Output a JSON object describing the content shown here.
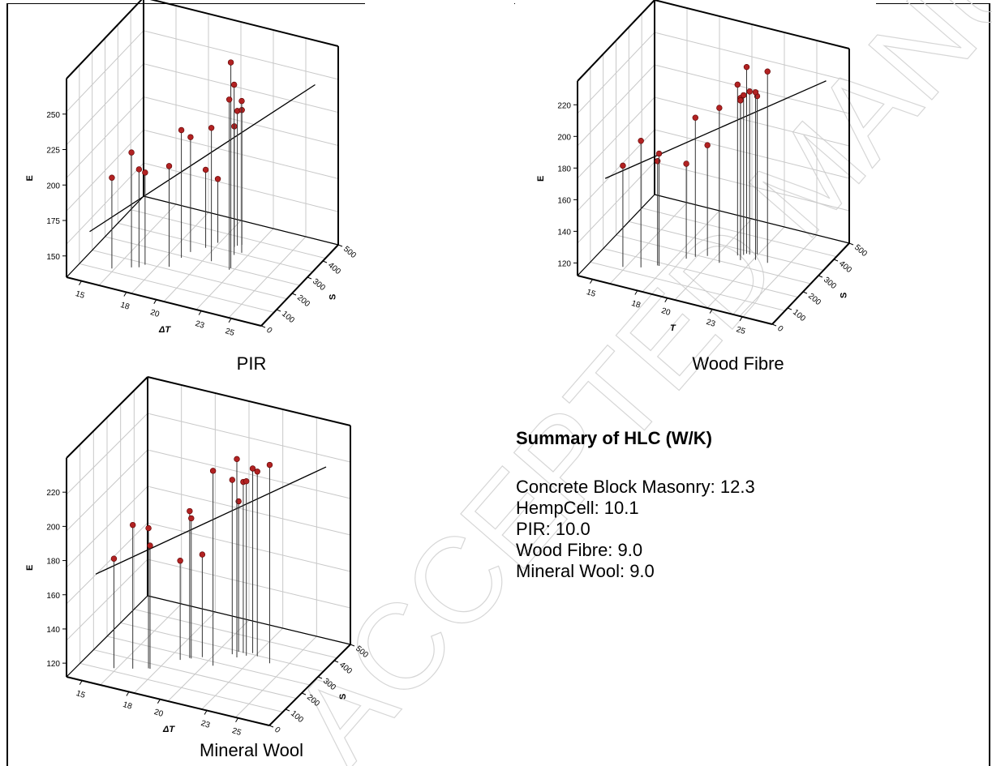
{
  "summary": {
    "title": "Summary of HLC (W/K)",
    "lines": [
      "Concrete Block Masonry: 12.3",
      "HempCell: 10.1",
      "PIR: 10.0",
      "Wood Fibre: 9.0",
      "Mineral Wool: 9.0"
    ]
  },
  "chart_data": [
    {
      "type": "scatter",
      "subtype": "3d-scatter-with-drop-lines-and-fit-line",
      "caption": "PIR",
      "xlabel": "ΔT",
      "zlabel": "S",
      "ylabel": "E",
      "x_ticks": [
        "15",
        "18",
        "20",
        "23",
        "25"
      ],
      "xlim": [
        14,
        27
      ],
      "z_ticks": [
        "0",
        "100",
        "200",
        "300",
        "400",
        "500"
      ],
      "zlim": [
        0,
        500
      ],
      "y_ticks": [
        "150",
        "175",
        "200",
        "225",
        "250"
      ],
      "ylim": [
        135,
        275
      ],
      "grid": true,
      "points": [
        {
          "x": 16.0,
          "s": 100,
          "y": 199
        },
        {
          "x": 17.0,
          "s": 130,
          "y": 216
        },
        {
          "x": 17.4,
          "s": 140,
          "y": 204
        },
        {
          "x": 17.6,
          "s": 160,
          "y": 200
        },
        {
          "x": 19.0,
          "s": 180,
          "y": 206
        },
        {
          "x": 19.2,
          "s": 240,
          "y": 225
        },
        {
          "x": 19.4,
          "s": 280,
          "y": 216
        },
        {
          "x": 20.0,
          "s": 320,
          "y": 190
        },
        {
          "x": 20.4,
          "s": 360,
          "y": 180
        },
        {
          "x": 21.0,
          "s": 260,
          "y": 229
        },
        {
          "x": 21.5,
          "s": 360,
          "y": 220
        },
        {
          "x": 21.6,
          "s": 370,
          "y": 230
        },
        {
          "x": 21.8,
          "s": 380,
          "y": 230
        },
        {
          "x": 21.9,
          "s": 320,
          "y": 255
        },
        {
          "x": 22.2,
          "s": 340,
          "y": 242
        },
        {
          "x": 22.4,
          "s": 250,
          "y": 280
        },
        {
          "x": 22.4,
          "s": 240,
          "y": 255
        }
      ],
      "fit_line": {
        "from": {
          "x": 14.0,
          "s": 150,
          "y": 150
        },
        "to": {
          "x": 27.0,
          "s": 350,
          "y": 265
        }
      }
    },
    {
      "type": "scatter",
      "subtype": "3d-scatter-with-drop-lines-and-fit-line",
      "caption": "Wood Fibre",
      "xlabel": "T",
      "zlabel": "S",
      "ylabel": "E",
      "x_ticks": [
        "15",
        "18",
        "20",
        "23",
        "25"
      ],
      "xlim": [
        14,
        27
      ],
      "z_ticks": [
        "0",
        "100",
        "200",
        "300",
        "400",
        "500"
      ],
      "zlim": [
        0,
        500
      ],
      "y_ticks": [
        "120",
        "140",
        "160",
        "180",
        "200",
        "220"
      ],
      "ylim": [
        112,
        235
      ],
      "grid": true,
      "points": [
        {
          "x": 16.0,
          "s": 100,
          "y": 176
        },
        {
          "x": 17.0,
          "s": 120,
          "y": 192
        },
        {
          "x": 17.8,
          "s": 150,
          "y": 178
        },
        {
          "x": 17.9,
          "s": 150,
          "y": 183
        },
        {
          "x": 19.0,
          "s": 220,
          "y": 172
        },
        {
          "x": 19.4,
          "s": 240,
          "y": 200
        },
        {
          "x": 20.0,
          "s": 260,
          "y": 182
        },
        {
          "x": 21.0,
          "s": 240,
          "y": 210
        },
        {
          "x": 21.6,
          "s": 300,
          "y": 220
        },
        {
          "x": 21.8,
          "s": 300,
          "y": 212
        },
        {
          "x": 21.9,
          "s": 310,
          "y": 213
        },
        {
          "x": 22.0,
          "s": 320,
          "y": 230
        },
        {
          "x": 22.2,
          "s": 320,
          "y": 215
        },
        {
          "x": 22.6,
          "s": 330,
          "y": 212
        },
        {
          "x": 22.8,
          "s": 300,
          "y": 218
        },
        {
          "x": 23.6,
          "s": 300,
          "y": 233
        },
        {
          "x": 22.0,
          "s": 280,
          "y": 213
        }
      ],
      "fit_line": {
        "from": {
          "x": 14.0,
          "s": 180,
          "y": 155
        },
        "to": {
          "x": 27.0,
          "s": 350,
          "y": 230
        }
      }
    },
    {
      "type": "scatter",
      "subtype": "3d-scatter-with-drop-lines-and-fit-line",
      "caption": "Mineral Wool",
      "xlabel": "ΔT",
      "zlabel": "S",
      "ylabel": "E",
      "x_ticks": [
        "15",
        "18",
        "20",
        "23",
        "25"
      ],
      "xlim": [
        14,
        27
      ],
      "z_ticks": [
        "0",
        "100",
        "200",
        "300",
        "400",
        "500"
      ],
      "zlim": [
        0,
        500
      ],
      "y_ticks": [
        "120",
        "140",
        "160",
        "180",
        "200",
        "220"
      ],
      "ylim": [
        112,
        240
      ],
      "grid": true,
      "points": [
        {
          "x": 16.0,
          "s": 100,
          "y": 176
        },
        {
          "x": 17.0,
          "s": 120,
          "y": 196
        },
        {
          "x": 17.8,
          "s": 140,
          "y": 194
        },
        {
          "x": 17.9,
          "s": 140,
          "y": 184
        },
        {
          "x": 19.0,
          "s": 220,
          "y": 170
        },
        {
          "x": 19.4,
          "s": 240,
          "y": 198
        },
        {
          "x": 19.5,
          "s": 240,
          "y": 194
        },
        {
          "x": 20.0,
          "s": 260,
          "y": 172
        },
        {
          "x": 21.0,
          "s": 230,
          "y": 226
        },
        {
          "x": 21.4,
          "s": 310,
          "y": 214
        },
        {
          "x": 21.6,
          "s": 330,
          "y": 200
        },
        {
          "x": 21.8,
          "s": 300,
          "y": 228
        },
        {
          "x": 21.9,
          "s": 330,
          "y": 212
        },
        {
          "x": 22.2,
          "s": 320,
          "y": 214
        },
        {
          "x": 22.4,
          "s": 340,
          "y": 220
        },
        {
          "x": 22.8,
          "s": 330,
          "y": 220
        },
        {
          "x": 23.8,
          "s": 310,
          "y": 228
        }
      ],
      "fit_line": {
        "from": {
          "x": 14.0,
          "s": 180,
          "y": 155
        },
        "to": {
          "x": 27.0,
          "s": 350,
          "y": 230
        }
      }
    }
  ],
  "colors": {
    "point": "#b22222",
    "axis": "#000000",
    "grid": "#c8c8c8",
    "watermark": "#d6d6d6"
  },
  "watermark_text": "ACCEPTED MANUSCRIPT"
}
